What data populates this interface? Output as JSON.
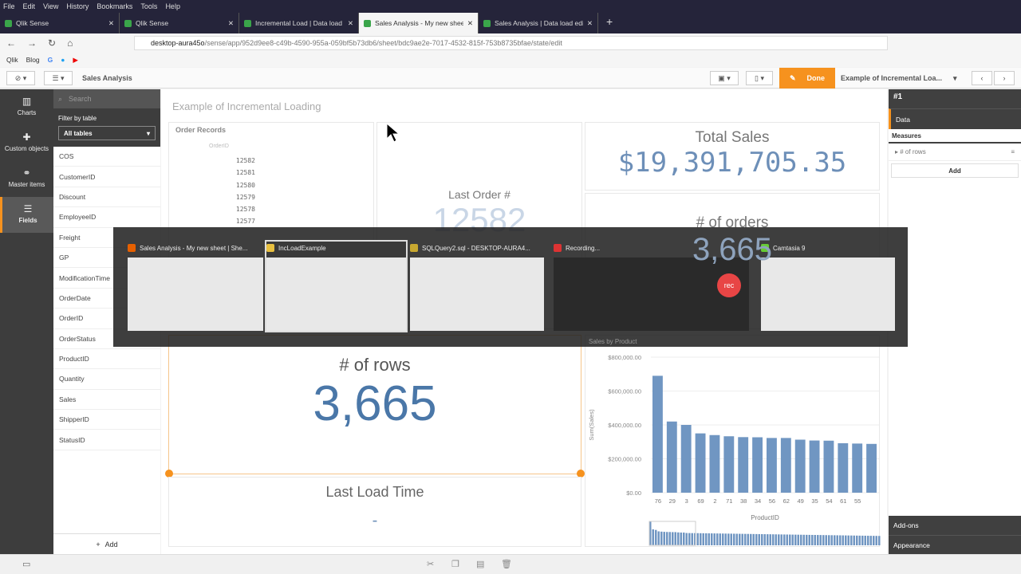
{
  "browser": {
    "menu": [
      "File",
      "Edit",
      "View",
      "History",
      "Bookmarks",
      "Tools",
      "Help"
    ],
    "tabs": [
      {
        "label": "Qlik Sense"
      },
      {
        "label": "Qlik Sense"
      },
      {
        "label": "Incremental Load | Data load e"
      },
      {
        "label": "Sales Analysis - My new sheet |",
        "active": true
      },
      {
        "label": "Sales Analysis | Data load edito"
      }
    ],
    "url_host": "desktop-aura45o",
    "url_path": "/sense/app/952d9ee8-c49b-4590-955a-059bf5b73db6/sheet/bdc9ae2e-7017-4532-815f-753b8735bfae/state/edit",
    "bookmarks": [
      "Qlik",
      "Blog"
    ]
  },
  "toolbar": {
    "app_name": "Sales Analysis",
    "done_label": "Done",
    "sheet_name": "Example of Incremental Loa..."
  },
  "leftnav": [
    {
      "label": "Charts",
      "icon": "chart-icon"
    },
    {
      "label": "Custom objects",
      "icon": "puzzle-icon"
    },
    {
      "label": "Master items",
      "icon": "link-icon"
    },
    {
      "label": "Fields",
      "icon": "database-icon",
      "active": true
    }
  ],
  "fields": {
    "search_placeholder": "Search",
    "filter_label": "Filter by table",
    "filter_value": "All tables",
    "items": [
      "COS",
      "CustomerID",
      "Discount",
      "EmployeeID",
      "Freight",
      "GP",
      "ModificationTime",
      "OrderDate",
      "OrderID",
      "OrderStatus",
      "ProductID",
      "Quantity",
      "Sales",
      "ShipperID",
      "StatusID"
    ],
    "add_label": "Add"
  },
  "sheet": {
    "title": "Example of Incremental Loading",
    "order_records": {
      "title": "Order Records",
      "column": "OrderID",
      "values": [
        "12582",
        "12581",
        "12580",
        "12579",
        "12578",
        "12577"
      ]
    },
    "last_order": {
      "title": "Last Order #",
      "value": "12582"
    },
    "total_sales": {
      "title": "Total Sales",
      "value": "$19,391,705.35"
    },
    "num_orders": {
      "title": "# of orders",
      "value": "3,665"
    },
    "num_rows": {
      "title": "# of rows",
      "value": "3,665"
    },
    "last_load": {
      "title": "Last Load Time",
      "value": "-"
    },
    "sales_by_product": {
      "title": "Sales by Product"
    }
  },
  "chart_data": {
    "type": "bar",
    "title": "Sales by Product",
    "xlabel": "ProductID",
    "ylabel": "Sum(Sales)",
    "categories": [
      "76",
      "29",
      "3",
      "69",
      "2",
      "71",
      "38",
      "34",
      "56",
      "62",
      "49",
      "35",
      "54",
      "61",
      "55",
      ""
    ],
    "values": [
      690000,
      420000,
      400000,
      350000,
      340000,
      333000,
      328000,
      327000,
      323000,
      323000,
      313000,
      308000,
      307000,
      292000,
      290000,
      288000
    ],
    "yticks": [
      "$0.00",
      "$200,000.00",
      "$400,000.00",
      "$600,000.00",
      "$800,000.00"
    ],
    "ylim": [
      0,
      800000
    ],
    "grid": true,
    "color": "#7096c2"
  },
  "rightpanel": {
    "title": "#1",
    "tab": "Data",
    "section": "Measures",
    "measure": "# of rows",
    "add_label": "Add",
    "addons": "Add-ons",
    "appearance": "Appearance"
  },
  "taskswitcher": [
    {
      "label": "Sales Analysis - My new sheet | She...",
      "icon": "firefox-icon"
    },
    {
      "label": "IncLoadExample",
      "icon": "folder-icon",
      "selected": true
    },
    {
      "label": "SQLQuery2.sql - DESKTOP-AURA4...",
      "icon": "sql-icon"
    },
    {
      "label": "Recording...",
      "icon": "camtasia-recorder-icon",
      "rec": "rec"
    },
    {
      "label": "Camtasia 9",
      "icon": "camtasia-icon"
    }
  ],
  "accent": "#f6921e"
}
